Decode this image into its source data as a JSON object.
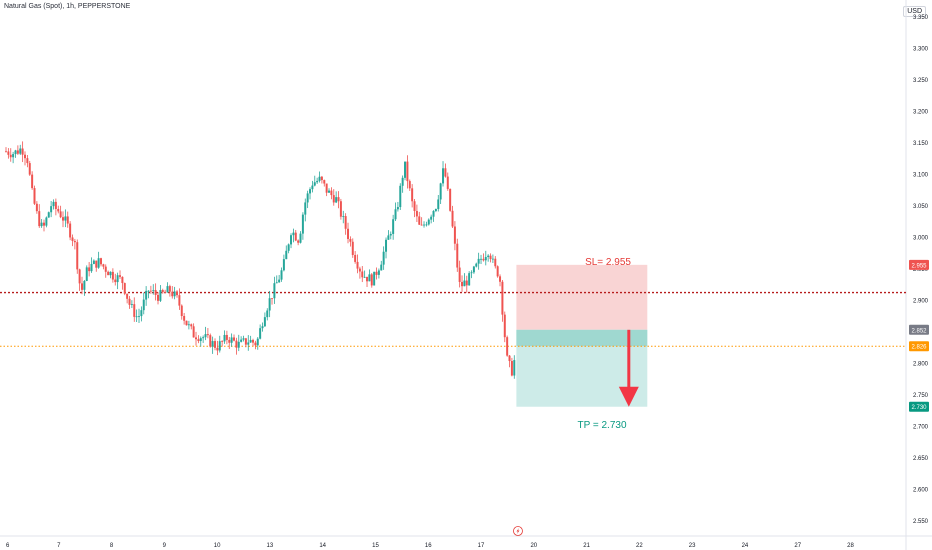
{
  "header": {
    "title": "Natural Gas (Spot), 1h, PEPPERSTONE",
    "currency": "USD"
  },
  "colors": {
    "up": "#26a69a",
    "down": "#ef5350",
    "sl_zone": "#f9d4d4",
    "tp_zone": "#cdebe8",
    "entry_zone": "#9fd8d0",
    "arrow": "#f23645",
    "resistance": "#b71c1c",
    "current_price": "#ff9800",
    "entry_tag": "#787b86",
    "tp_tag": "#089981"
  },
  "annotations": {
    "sl_label": "SL= 2.955",
    "tp_label": "TP = 2.730"
  },
  "icons": {
    "event_marker": "lightning-icon",
    "trade_arrow": "down-arrow-icon"
  },
  "chart_data": {
    "type": "candlestick",
    "title": "Natural Gas (Spot), 1h, PEPPERSTONE",
    "x_ticks": [
      "6",
      "7",
      "8",
      "9",
      "10",
      "13",
      "14",
      "15",
      "16",
      "17",
      "20",
      "21",
      "22",
      "23",
      "24",
      "27",
      "28"
    ],
    "y_ticks": [
      "3.350",
      "3.300",
      "3.250",
      "3.200",
      "3.150",
      "3.100",
      "3.050",
      "3.000",
      "2.950",
      "2.900",
      "2.850",
      "2.800",
      "2.750",
      "2.700",
      "2.650",
      "2.600",
      "2.550"
    ],
    "ylim": [
      2.525,
      3.375
    ],
    "x_range": [
      0,
      16.9
    ],
    "price_tags": [
      {
        "label": "2.955",
        "value": 2.955,
        "kind": "sl"
      },
      {
        "label": "2.852",
        "value": 2.852,
        "kind": "entry"
      },
      {
        "label": "2.826",
        "value": 2.826,
        "kind": "current"
      },
      {
        "label": "2.730",
        "value": 2.73,
        "kind": "tp"
      }
    ],
    "horizontal_lines": [
      {
        "value": 2.911,
        "style": "dotted",
        "kind": "resistance"
      },
      {
        "value": 2.826,
        "style": "dotted",
        "kind": "current"
      }
    ],
    "position": {
      "direction": "short",
      "entry": 2.852,
      "stop_loss": 2.955,
      "take_profit": 2.73,
      "x_start": 9.67,
      "x_end": 12.15
    },
    "trade_arrow": {
      "x": 11.8,
      "from": 2.852,
      "to": 2.73
    },
    "event_marker_x": 9.7,
    "close_path": [
      [
        0.0,
        3.135
      ],
      [
        0.15,
        3.132
      ],
      [
        0.3,
        3.14
      ],
      [
        0.4,
        3.125
      ],
      [
        0.5,
        3.065
      ],
      [
        0.6,
        3.03
      ],
      [
        0.7,
        3.01
      ],
      [
        0.85,
        3.05
      ],
      [
        1.0,
        3.04
      ],
      [
        1.15,
        3.02
      ],
      [
        1.3,
        2.99
      ],
      [
        1.42,
        2.91
      ],
      [
        1.55,
        2.95
      ],
      [
        1.75,
        2.96
      ],
      [
        2.0,
        2.94
      ],
      [
        2.2,
        2.93
      ],
      [
        2.35,
        2.89
      ],
      [
        2.5,
        2.87
      ],
      [
        2.7,
        2.915
      ],
      [
        2.9,
        2.905
      ],
      [
        3.1,
        2.915
      ],
      [
        3.25,
        2.9
      ],
      [
        3.4,
        2.865
      ],
      [
        3.55,
        2.845
      ],
      [
        3.75,
        2.84
      ],
      [
        4.0,
        2.825
      ],
      [
        4.2,
        2.84
      ],
      [
        4.4,
        2.828
      ],
      [
        4.6,
        2.835
      ],
      [
        4.75,
        2.83
      ],
      [
        4.9,
        2.88
      ],
      [
        5.1,
        2.92
      ],
      [
        5.25,
        2.95
      ],
      [
        5.4,
        3.01
      ],
      [
        5.55,
        2.995
      ],
      [
        5.65,
        3.05
      ],
      [
        5.8,
        3.085
      ],
      [
        5.95,
        3.09
      ],
      [
        6.1,
        3.07
      ],
      [
        6.25,
        3.06
      ],
      [
        6.45,
        3.01
      ],
      [
        6.6,
        2.97
      ],
      [
        6.75,
        2.94
      ],
      [
        6.95,
        2.93
      ],
      [
        7.1,
        2.96
      ],
      [
        7.25,
        3.0
      ],
      [
        7.4,
        3.04
      ],
      [
        7.55,
        3.115
      ],
      [
        7.7,
        3.05
      ],
      [
        7.85,
        3.01
      ],
      [
        8.0,
        3.03
      ],
      [
        8.15,
        3.05
      ],
      [
        8.3,
        3.11
      ],
      [
        8.45,
        3.02
      ],
      [
        8.6,
        2.92
      ],
      [
        8.8,
        2.935
      ],
      [
        9.0,
        2.965
      ],
      [
        9.15,
        2.98
      ],
      [
        9.25,
        2.95
      ],
      [
        9.35,
        2.94
      ],
      [
        9.43,
        2.86
      ],
      [
        9.5,
        2.8
      ],
      [
        9.6,
        2.785
      ],
      [
        9.67,
        2.826
      ]
    ]
  }
}
